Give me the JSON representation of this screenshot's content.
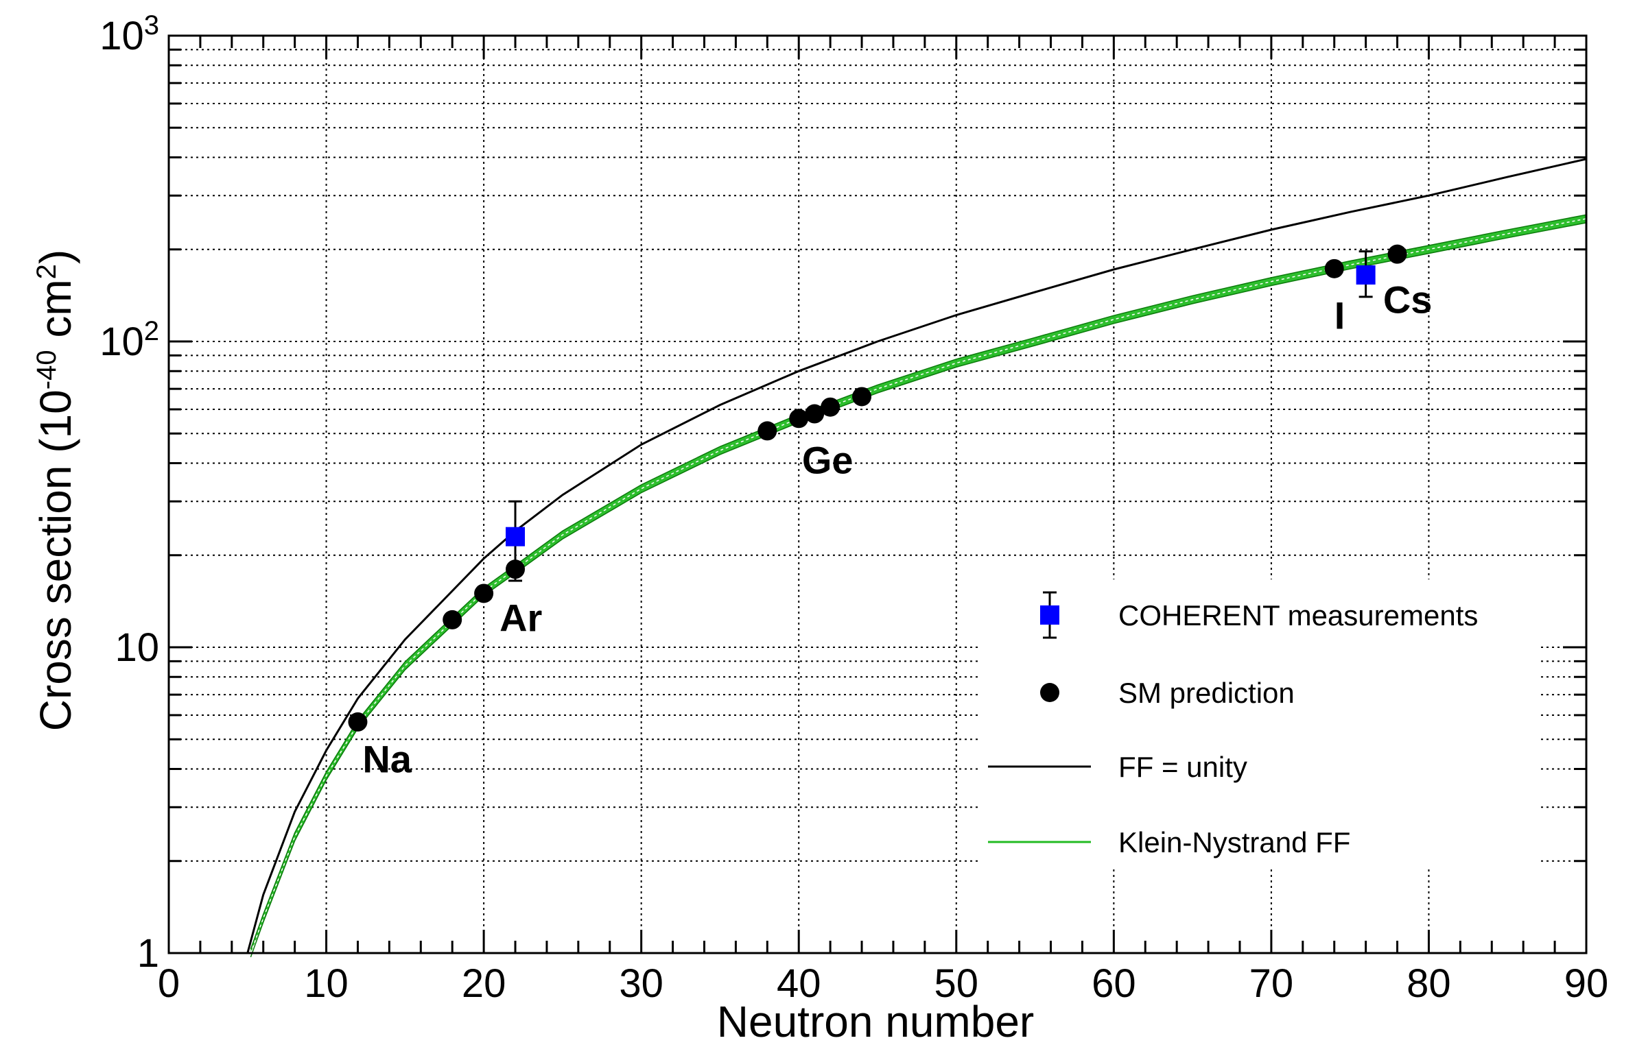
{
  "chart_data": {
    "type": "scatter",
    "xlabel": "Neutron number",
    "ylabel": "Cross section (10",
    "ylabel_sup": "-40",
    "ylabel_unit": " cm",
    "ylabel_unit_sup": "2",
    "ylabel_close": ")",
    "xlim": [
      0,
      90
    ],
    "ylim": [
      1,
      1000
    ],
    "yscale": "log",
    "grid": true,
    "x_ticks": [
      "0",
      "10",
      "20",
      "30",
      "40",
      "50",
      "60",
      "70",
      "80",
      "90"
    ],
    "y_ticks": [
      {
        "value": 1,
        "label": "1"
      },
      {
        "value": 10,
        "label": "10"
      },
      {
        "value": 100,
        "base": "10",
        "exp": "2"
      },
      {
        "value": 1000,
        "base": "10",
        "exp": "3"
      }
    ],
    "legend_position": "bottom-right",
    "series": [
      {
        "name": "COHERENT measurements",
        "kind": "measurement",
        "color": "#0000ff",
        "points": [
          {
            "x": 22,
            "y": 23,
            "err_low": 16.5,
            "err_high": 30
          },
          {
            "x": 76,
            "y": 165,
            "err_low": 140,
            "err_high": 197
          }
        ]
      },
      {
        "name": "SM prediction",
        "kind": "prediction",
        "color": "#000000",
        "points": [
          {
            "x": 12,
            "y": 5.7
          },
          {
            "x": 18,
            "y": 12.3
          },
          {
            "x": 20,
            "y": 15.0
          },
          {
            "x": 22,
            "y": 18.0
          },
          {
            "x": 38,
            "y": 51
          },
          {
            "x": 40,
            "y": 56
          },
          {
            "x": 41,
            "y": 58
          },
          {
            "x": 42,
            "y": 61
          },
          {
            "x": 44,
            "y": 66
          },
          {
            "x": 74,
            "y": 173
          },
          {
            "x": 78,
            "y": 193
          }
        ]
      },
      {
        "name": "FF = unity",
        "kind": "curve",
        "color": "#000000",
        "x": [
          5.0,
          6,
          8,
          10,
          12,
          15,
          20,
          22,
          25,
          30,
          35,
          40,
          45,
          50,
          55,
          60,
          65,
          70,
          75,
          80,
          85,
          90
        ],
        "y": [
          1.0,
          1.55,
          2.9,
          4.6,
          6.8,
          10.6,
          19.5,
          24.0,
          31.5,
          46,
          62,
          80,
          100,
          122,
          145,
          172,
          200,
          232,
          265,
          300,
          345,
          395
        ]
      },
      {
        "name": "Klein-Nystrand FF",
        "kind": "band",
        "color": "#22bb22",
        "x": [
          5.2,
          6,
          8,
          10,
          12,
          15,
          20,
          22,
          25,
          30,
          35,
          40,
          45,
          50,
          55,
          60,
          65,
          70,
          75,
          80,
          85,
          90
        ],
        "y": [
          1.0,
          1.3,
          2.4,
          3.8,
          5.6,
          8.7,
          15.2,
          18.0,
          23.3,
          33,
          44,
          56,
          70,
          85,
          100,
          118,
          137,
          157,
          178,
          200,
          225,
          252
        ],
        "band_frac": 0.03
      }
    ],
    "annotations": [
      {
        "text": "Na",
        "x": 12.3,
        "y": 3.9
      },
      {
        "text": "Ar",
        "x": 21.0,
        "y": 11.3
      },
      {
        "text": "Ge",
        "x": 40.2,
        "y": 37
      },
      {
        "text": "I",
        "x": 74.0,
        "y": 110
      },
      {
        "text": "Cs",
        "x": 77.1,
        "y": 124
      }
    ]
  }
}
